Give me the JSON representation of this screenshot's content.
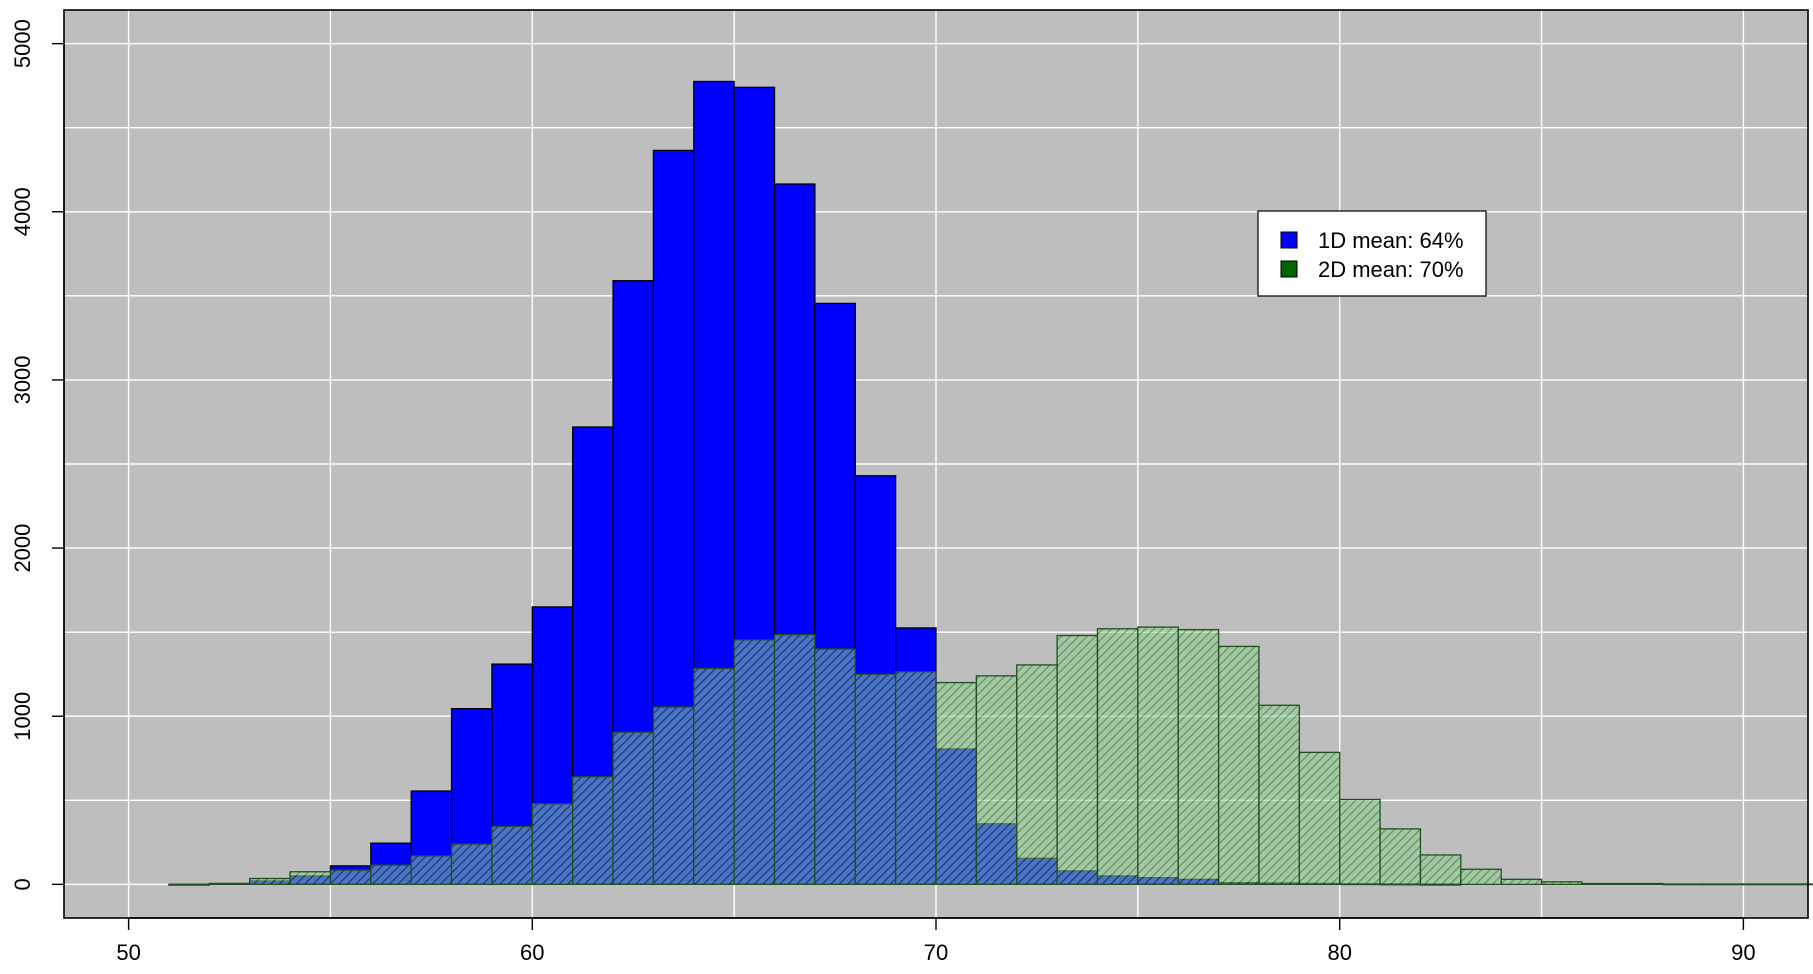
{
  "chart_data": {
    "type": "bar",
    "title": "",
    "xlabel": "",
    "ylabel": "",
    "xlim": [
      48.4,
      91.6
    ],
    "ylim": [
      -200,
      5200
    ],
    "x_ticks": [
      50,
      60,
      70,
      80,
      90
    ],
    "y_ticks": [
      0,
      1000,
      2000,
      3000,
      4000,
      5000
    ],
    "grid": true,
    "legend_position": "top-right",
    "bin_width": 1,
    "series": [
      {
        "name": "1D mean: 64%",
        "color": "#0000ff",
        "bins": [
          {
            "x0": 51,
            "value": 0
          },
          {
            "x0": 52,
            "value": 5
          },
          {
            "x0": 53,
            "value": 20
          },
          {
            "x0": 54,
            "value": 50
          },
          {
            "x0": 55,
            "value": 110
          },
          {
            "x0": 56,
            "value": 245
          },
          {
            "x0": 57,
            "value": 555
          },
          {
            "x0": 58,
            "value": 1045
          },
          {
            "x0": 59,
            "value": 1310
          },
          {
            "x0": 60,
            "value": 1650
          },
          {
            "x0": 61,
            "value": 2720
          },
          {
            "x0": 62,
            "value": 3590
          },
          {
            "x0": 63,
            "value": 4365
          },
          {
            "x0": 64,
            "value": 4775
          },
          {
            "x0": 65,
            "value": 4740
          },
          {
            "x0": 66,
            "value": 4165
          },
          {
            "x0": 67,
            "value": 3455
          },
          {
            "x0": 68,
            "value": 2430
          },
          {
            "x0": 69,
            "value": 1525
          },
          {
            "x0": 70,
            "value": 805
          },
          {
            "x0": 71,
            "value": 360
          },
          {
            "x0": 72,
            "value": 155
          },
          {
            "x0": 73,
            "value": 80
          },
          {
            "x0": 74,
            "value": 50
          },
          {
            "x0": 75,
            "value": 40
          },
          {
            "x0": 76,
            "value": 30
          },
          {
            "x0": 77,
            "value": 10
          },
          {
            "x0": 78,
            "value": 8
          },
          {
            "x0": 79,
            "value": 5
          },
          {
            "x0": 80,
            "value": 3
          },
          {
            "x0": 81,
            "value": 2
          },
          {
            "x0": 82,
            "value": 1
          }
        ]
      },
      {
        "name": "2D mean: 70%",
        "color": "#006400",
        "bins": [
          {
            "x0": 51,
            "value": 0
          },
          {
            "x0": 52,
            "value": 5
          },
          {
            "x0": 53,
            "value": 35
          },
          {
            "x0": 54,
            "value": 75
          },
          {
            "x0": 55,
            "value": 85
          },
          {
            "x0": 56,
            "value": 115
          },
          {
            "x0": 57,
            "value": 170
          },
          {
            "x0": 58,
            "value": 240
          },
          {
            "x0": 59,
            "value": 345
          },
          {
            "x0": 60,
            "value": 480
          },
          {
            "x0": 61,
            "value": 640
          },
          {
            "x0": 62,
            "value": 905
          },
          {
            "x0": 63,
            "value": 1055
          },
          {
            "x0": 64,
            "value": 1285
          },
          {
            "x0": 65,
            "value": 1455
          },
          {
            "x0": 66,
            "value": 1485
          },
          {
            "x0": 67,
            "value": 1400
          },
          {
            "x0": 68,
            "value": 1250
          },
          {
            "x0": 69,
            "value": 1265
          },
          {
            "x0": 70,
            "value": 1200
          },
          {
            "x0": 71,
            "value": 1240
          },
          {
            "x0": 72,
            "value": 1305
          },
          {
            "x0": 73,
            "value": 1480
          },
          {
            "x0": 74,
            "value": 1520
          },
          {
            "x0": 75,
            "value": 1530
          },
          {
            "x0": 76,
            "value": 1515
          },
          {
            "x0": 77,
            "value": 1415
          },
          {
            "x0": 78,
            "value": 1065
          },
          {
            "x0": 79,
            "value": 785
          },
          {
            "x0": 80,
            "value": 505
          },
          {
            "x0": 81,
            "value": 330
          },
          {
            "x0": 82,
            "value": 175
          },
          {
            "x0": 83,
            "value": 90
          },
          {
            "x0": 84,
            "value": 30
          },
          {
            "x0": 85,
            "value": 15
          },
          {
            "x0": 86,
            "value": 5
          },
          {
            "x0": 87,
            "value": 5
          },
          {
            "x0": 88,
            "value": 2
          },
          {
            "x0": 89,
            "value": 2
          },
          {
            "x0": 90,
            "value": 2
          },
          {
            "x0": 91,
            "value": 2
          }
        ]
      }
    ]
  },
  "legend": {
    "items": [
      {
        "label": "1D mean: 64%",
        "color": "#0000ff"
      },
      {
        "label": "2D mean: 70%",
        "color": "#006400"
      }
    ]
  },
  "colors": {
    "panel_background": "#bebebe",
    "grid": "#ffffff",
    "frame": "#000000"
  }
}
